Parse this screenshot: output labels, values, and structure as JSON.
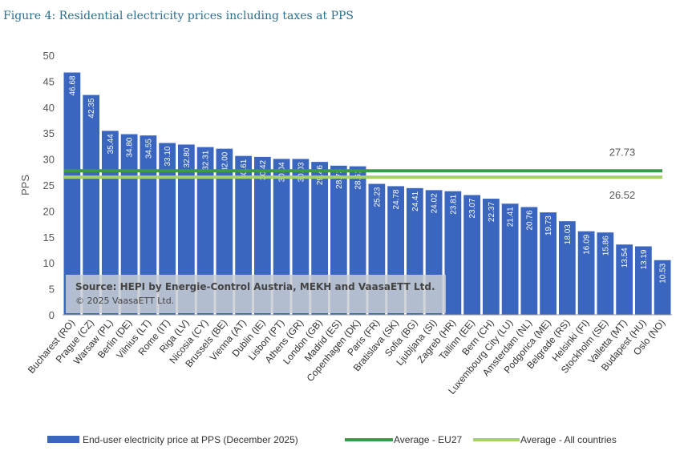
{
  "chart_data": {
    "type": "bar",
    "title": "Figure 4: Residential electricity prices including taxes at PPS",
    "ylabel": "PPS",
    "xlabel": "",
    "ylim": [
      0,
      50
    ],
    "yticks": [
      0,
      5,
      10,
      15,
      20,
      25,
      30,
      35,
      40,
      45,
      50
    ],
    "grid": false,
    "legend_position": "bottom",
    "categories": [
      "Bucharest (RO)",
      "Prague (CZ)",
      "Warsaw (PL)",
      "Berlin (DE)",
      "Vilnius (LT)",
      "Rome (IT)",
      "Riga (LV)",
      "Nicosia (CY)",
      "Brussels (BE)",
      "Vienna (AT)",
      "Dublin (IE)",
      "Lisbon (PT)",
      "Athens (GR)",
      "London (GB)",
      "Madrid (ES)",
      "Copenhagen (DK)",
      "Paris (FR)",
      "Bratislava (SK)",
      "Sofia (BG)",
      "Ljubljana (SI)",
      "Zagreb (HR)",
      "Tallinn (EE)",
      "Bern (CH)",
      "Luxembourg City (LU)",
      "Amsterdam (NL)",
      "Podgorica (ME)",
      "Belgrade (RS)",
      "Helsinki (FI)",
      "Stockholm (SE)",
      "Valletta (MT)",
      "Budapest (HU)",
      "Oslo (NO)"
    ],
    "series": [
      {
        "name": "End-user electricity price at PPS (December 2025)",
        "type": "bar",
        "color": "#3a66c0",
        "values": [
          46.68,
          42.35,
          35.44,
          34.8,
          34.55,
          33.1,
          32.8,
          32.31,
          32.0,
          30.61,
          30.42,
          30.04,
          30.03,
          29.46,
          28.73,
          28.61,
          25.23,
          24.78,
          24.41,
          24.02,
          23.81,
          23.07,
          22.37,
          21.41,
          20.76,
          19.73,
          18.03,
          16.09,
          15.86,
          13.54,
          13.19,
          10.53
        ]
      },
      {
        "name": "Average - EU27",
        "type": "line",
        "color": "#3c9a48",
        "value": 27.73,
        "label": "27.73"
      },
      {
        "name": "Average - All countries",
        "type": "line",
        "color": "#a6cf6e",
        "value": 26.52,
        "label": "26.52"
      }
    ],
    "annotation": {
      "line1": "Source: HEPI by Energie-Control Austria, MEKH and VaasaETT Ltd.",
      "line2": "© 2025 VaasaETT Ltd."
    }
  }
}
